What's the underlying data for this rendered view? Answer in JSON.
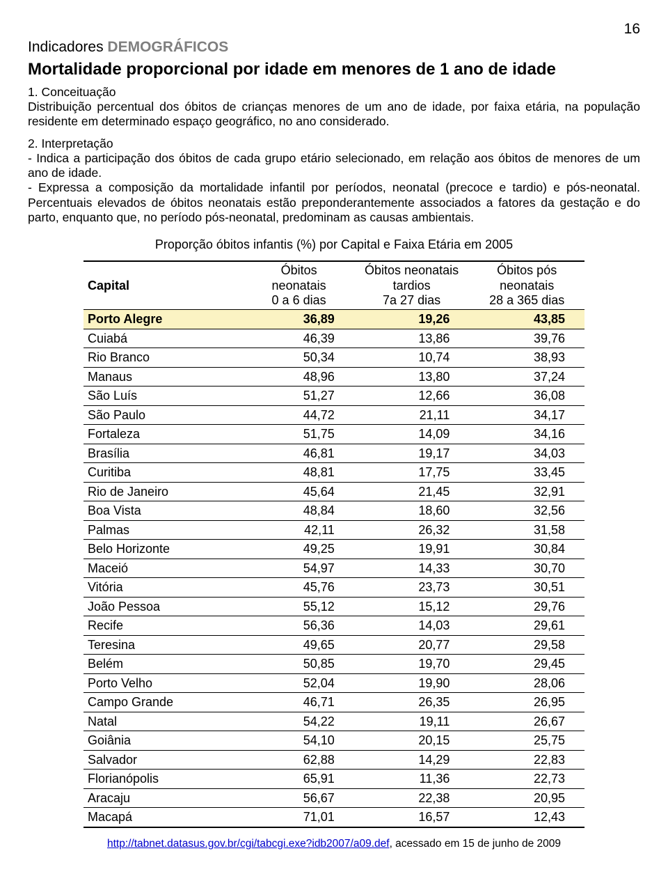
{
  "page_number": "16",
  "section_label_plain": "Indicadores ",
  "section_label_bold": "DEMOGRÁFICOS",
  "section_label_bold_color": "#7f7f7f",
  "title": "Mortalidade proporcional por idade em menores de 1 ano de idade",
  "s1_head": "1. Conceituação",
  "s1_body": "Distribuição percentual dos óbitos de crianças menores de um ano de idade, por faixa etária, na população residente em determinado espaço geográfico, no ano considerado.",
  "s2_head": "2. Interpretação",
  "s2_bullet1": "- Indica a participação dos óbitos de cada grupo etário selecionado, em relação aos óbitos de menores de um ano de idade.",
  "s2_bullet2": "- Expressa a composição da mortalidade infantil por períodos, neonatal (precoce e tardio) e pós-neonatal. Percentuais elevados de óbitos neonatais estão preponderantemente associados a fatores da gestação e do parto, enquanto que, no período pós-neonatal, predominam as causas ambientais.",
  "table": {
    "caption": "Proporção óbitos infantis (%) por Capital e Faixa Etária em 2005",
    "columns": [
      {
        "label": "Capital",
        "width": "32%",
        "align": "left"
      },
      {
        "line1": "Óbitos",
        "line2": "neonatais",
        "line3": "0 a 6 dias",
        "width": "22%",
        "align": "right"
      },
      {
        "line1": "Óbitos neonatais",
        "line2": "tardios",
        "line3": "7a 27 dias",
        "width": "23%",
        "align": "right"
      },
      {
        "line1": "Óbitos pós",
        "line2": "neonatais",
        "line3": "28 a 365 dias",
        "width": "23%",
        "align": "right"
      }
    ],
    "highlight_bg": "#fbf3c3",
    "rows": [
      {
        "c": "Porto Alegre",
        "v1": "36,89",
        "v2": "19,26",
        "v3": "43,85",
        "hl": true
      },
      {
        "c": "Cuiabá",
        "v1": "46,39",
        "v2": "13,86",
        "v3": "39,76"
      },
      {
        "c": "Rio Branco",
        "v1": "50,34",
        "v2": "10,74",
        "v3": "38,93"
      },
      {
        "c": "Manaus",
        "v1": "48,96",
        "v2": "13,80",
        "v3": "37,24"
      },
      {
        "c": "São Luís",
        "v1": "51,27",
        "v2": "12,66",
        "v3": "36,08"
      },
      {
        "c": "São Paulo",
        "v1": "44,72",
        "v2": "21,11",
        "v3": "34,17"
      },
      {
        "c": "Fortaleza",
        "v1": "51,75",
        "v2": "14,09",
        "v3": "34,16"
      },
      {
        "c": "Brasília",
        "v1": "46,81",
        "v2": "19,17",
        "v3": "34,03"
      },
      {
        "c": "Curitiba",
        "v1": "48,81",
        "v2": "17,75",
        "v3": "33,45"
      },
      {
        "c": "Rio de Janeiro",
        "v1": "45,64",
        "v2": "21,45",
        "v3": "32,91"
      },
      {
        "c": "Boa Vista",
        "v1": "48,84",
        "v2": "18,60",
        "v3": "32,56"
      },
      {
        "c": "Palmas",
        "v1": "42,11",
        "v2": "26,32",
        "v3": "31,58"
      },
      {
        "c": "Belo Horizonte",
        "v1": "49,25",
        "v2": "19,91",
        "v3": "30,84"
      },
      {
        "c": "Maceió",
        "v1": "54,97",
        "v2": "14,33",
        "v3": "30,70"
      },
      {
        "c": "Vitória",
        "v1": "45,76",
        "v2": "23,73",
        "v3": "30,51"
      },
      {
        "c": "João Pessoa",
        "v1": "55,12",
        "v2": "15,12",
        "v3": "29,76"
      },
      {
        "c": "Recife",
        "v1": "56,36",
        "v2": "14,03",
        "v3": "29,61"
      },
      {
        "c": "Teresina",
        "v1": "49,65",
        "v2": "20,77",
        "v3": "29,58"
      },
      {
        "c": "Belém",
        "v1": "50,85",
        "v2": "19,70",
        "v3": "29,45"
      },
      {
        "c": "Porto Velho",
        "v1": "52,04",
        "v2": "19,90",
        "v3": "28,06"
      },
      {
        "c": "Campo Grande",
        "v1": "46,71",
        "v2": "26,35",
        "v3": "26,95"
      },
      {
        "c": "Natal",
        "v1": "54,22",
        "v2": "19,11",
        "v3": "26,67"
      },
      {
        "c": "Goiânia",
        "v1": "54,10",
        "v2": "20,15",
        "v3": "25,75"
      },
      {
        "c": "Salvador",
        "v1": "62,88",
        "v2": "14,29",
        "v3": "22,83"
      },
      {
        "c": "Florianópolis",
        "v1": "65,91",
        "v2": "11,36",
        "v3": "22,73"
      },
      {
        "c": "Aracaju",
        "v1": "56,67",
        "v2": "22,38",
        "v3": "20,95"
      },
      {
        "c": "Macapá",
        "v1": "71,01",
        "v2": "16,57",
        "v3": "12,43"
      }
    ]
  },
  "footer_link_text": "http://tabnet.datasus.gov.br/cgi/tabcgi.exe?idb2007/a09.def",
  "footer_after": ", acessado em 15 de junho de 2009"
}
